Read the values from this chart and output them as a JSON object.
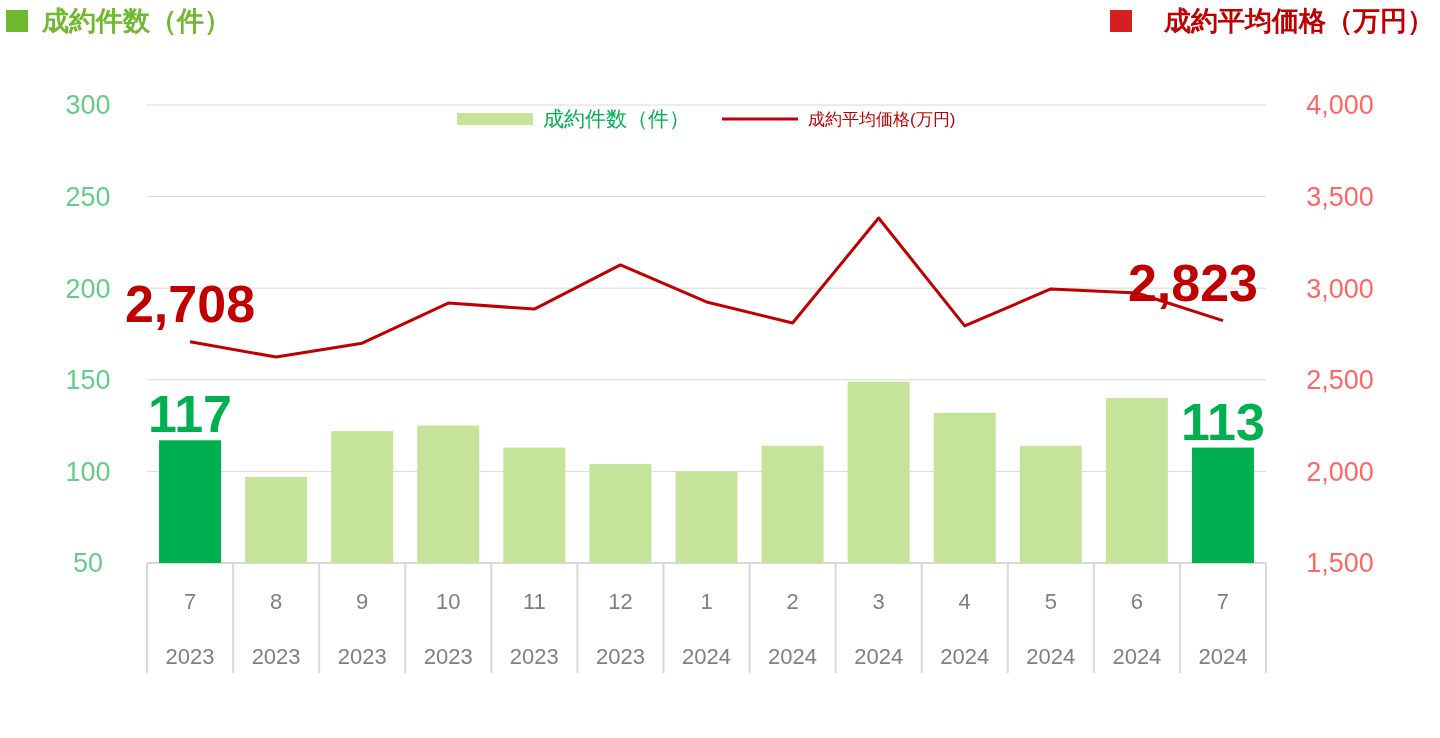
{
  "chart_data": {
    "type": "bar",
    "ylabel": "成約件数（件）",
    "y2label": "成約平均価格（万円）",
    "categories": [
      "7\n2023",
      "8\n2023",
      "9\n2023",
      "10\n2023",
      "11\n2023",
      "12\n2023",
      "1\n2024",
      "2\n2024",
      "3\n2024",
      "4\n2024",
      "5\n2024",
      "6\n2024",
      "7\n2024"
    ],
    "series": [
      {
        "name": "成約件数（件）",
        "colors": [
          "#00b050",
          "#c5e49a",
          "#c5e49a",
          "#c5e49a",
          "#c5e49a",
          "#c5e49a",
          "#c5e49a",
          "#c5e49a",
          "#c5e49a",
          "#c5e49a",
          "#c5e49a",
          "#c5e49a",
          "#00b050"
        ],
        "values": [
          117,
          97,
          122,
          125,
          113,
          104,
          100,
          114,
          149,
          132,
          114,
          140,
          113
        ],
        "value_labels": [
          "117",
          null,
          null,
          null,
          null,
          null,
          null,
          null,
          null,
          null,
          null,
          null,
          "113"
        ]
      },
      {
        "type": "line",
        "axis": "y2",
        "name": "成約平均価格(万円)",
        "color": "#c00000",
        "values": [
          2708,
          2624,
          2700,
          2919,
          2886,
          3127,
          2925,
          2810,
          3383,
          2794,
          2996,
          2974,
          2823
        ],
        "value_labels": [
          "2,708",
          null,
          null,
          null,
          null,
          null,
          null,
          null,
          null,
          null,
          null,
          null,
          "2,823"
        ]
      }
    ],
    "ylim": [
      50,
      300
    ],
    "yticks": [
      50,
      100,
      150,
      200,
      250,
      300
    ],
    "y2lim": [
      1500,
      4000
    ],
    "y2ticks": [
      {
        "value": 1500,
        "label": "1,500"
      },
      {
        "value": 2000,
        "label": "2,000"
      },
      {
        "value": 2500,
        "label": "2,500"
      },
      {
        "value": 3000,
        "label": "3,000"
      },
      {
        "value": 3500,
        "label": "3,500"
      },
      {
        "value": 4000,
        "label": "4,000"
      }
    ],
    "grid": "y",
    "legend": "top",
    "marker": "none"
  }
}
